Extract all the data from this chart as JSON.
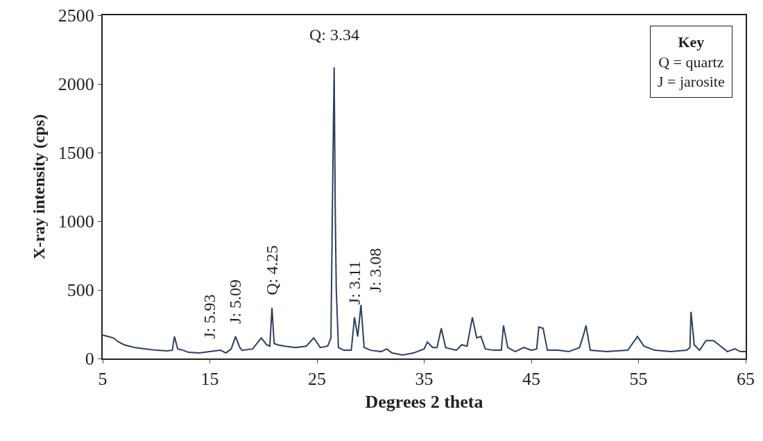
{
  "chart_data": {
    "type": "line",
    "xlabel": "Degrees 2 theta",
    "ylabel": "X-ray intensity (cps)",
    "x": [
      5,
      5.5,
      6,
      6.5,
      7,
      8,
      9,
      10,
      11,
      11.5,
      11.7,
      12,
      12.5,
      13,
      14,
      15,
      16,
      16.5,
      17,
      17.4,
      17.8,
      18,
      19,
      19.8,
      20.3,
      20.6,
      20.8,
      21,
      21.3,
      22,
      23,
      24,
      24.7,
      25.3,
      26,
      26.3,
      26.5,
      26.6,
      26.7,
      26.8,
      27,
      27.5,
      28.2,
      28.5,
      28.8,
      29.1,
      29.4,
      30,
      31,
      31.5,
      32,
      33,
      34,
      35,
      35.3,
      35.8,
      36.2,
      36.6,
      37,
      38,
      38.5,
      39,
      39.5,
      39.9,
      40.3,
      40.7,
      41.5,
      42.2,
      42.4,
      42.8,
      43.5,
      44.3,
      45,
      45.5,
      45.7,
      46.1,
      46.5,
      47.5,
      48.5,
      49.5,
      49.9,
      50.1,
      50.5,
      52,
      54,
      54.9,
      55.5,
      56.5,
      58,
      59.5,
      59.8,
      59.9,
      60.2,
      60.7,
      61.3,
      62,
      62.5,
      63.3,
      64,
      64.5,
      65
    ],
    "values": [
      170,
      160,
      150,
      120,
      100,
      80,
      70,
      60,
      55,
      60,
      160,
      70,
      60,
      45,
      40,
      50,
      60,
      40,
      70,
      160,
      80,
      60,
      70,
      150,
      100,
      90,
      370,
      110,
      100,
      90,
      80,
      90,
      150,
      80,
      90,
      150,
      1500,
      2120,
      1100,
      500,
      80,
      60,
      60,
      300,
      160,
      390,
      80,
      60,
      50,
      70,
      40,
      25,
      40,
      70,
      120,
      80,
      80,
      220,
      80,
      60,
      100,
      90,
      300,
      150,
      160,
      70,
      60,
      60,
      240,
      80,
      50,
      80,
      60,
      70,
      230,
      220,
      60,
      60,
      50,
      80,
      180,
      240,
      60,
      50,
      60,
      160,
      90,
      60,
      50,
      60,
      80,
      340,
      100,
      60,
      130,
      130,
      100,
      50,
      70,
      50,
      50
    ],
    "color": "#2e3f5c",
    "xlim": [
      5,
      65
    ],
    "xticks": [
      5,
      15,
      25,
      35,
      45,
      55,
      65
    ],
    "ylim": [
      0,
      2500
    ],
    "yticks": [
      0,
      500,
      1000,
      1500,
      2000,
      2500
    ],
    "grid": false,
    "legend": false,
    "marker": "none",
    "line_style": "solid",
    "annotations": [
      {
        "text": "J: 5.93",
        "x": 15,
        "y": 50
      },
      {
        "text": "J: 5.09",
        "x": 17.4,
        "y": 160
      },
      {
        "text": "Q: 4.25",
        "x": 20.8,
        "y": 370
      },
      {
        "text": "Q: 3.34",
        "x": 26.6,
        "y": 2120
      },
      {
        "text": "J: 3.11",
        "x": 28.5,
        "y": 300
      },
      {
        "text": "J: 3.08",
        "x": 29.1,
        "y": 390
      },
      "Key",
      "Q = quartz",
      "J = jarosite"
    ]
  }
}
